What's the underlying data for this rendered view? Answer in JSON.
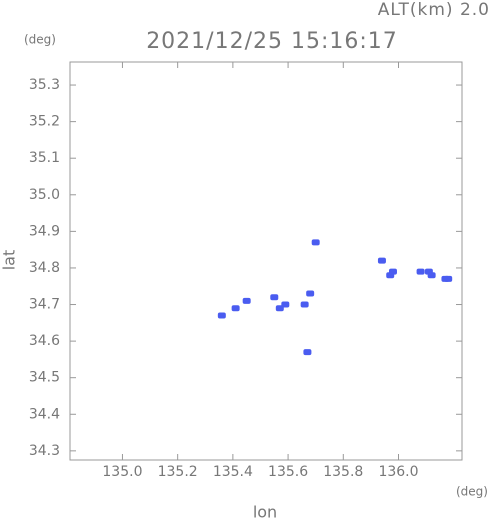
{
  "chart_data": {
    "type": "scatter",
    "title": "2021/12/25 15:16:17",
    "subtitle": "ALT(km) 2.0",
    "x_label": "lon",
    "y_label": "lat",
    "x_unit": "(deg)",
    "y_unit": "(deg)",
    "x": [
      135.7,
      135.94,
      135.98,
      135.97,
      136.08,
      136.11,
      136.12,
      136.17,
      136.18,
      135.68,
      135.55,
      135.59,
      135.57,
      135.66,
      135.41,
      135.45,
      135.36,
      135.67
    ],
    "values": [
      34.87,
      34.82,
      34.79,
      34.78,
      34.79,
      34.79,
      34.78,
      34.77,
      34.77,
      34.73,
      34.72,
      34.7,
      34.69,
      34.7,
      34.69,
      34.71,
      34.67,
      34.57
    ],
    "color": "#4a5cf0",
    "xlim": [
      134.81,
      136.23
    ],
    "ylim": [
      34.275,
      35.363
    ],
    "xticks": [
      {
        "value": 135.0,
        "label": "135.0"
      },
      135.2,
      135.4,
      135.6,
      135.8,
      {
        "value": 136.0,
        "label": "136.0"
      }
    ],
    "yticks": [
      34.3,
      34.4,
      34.5,
      34.6,
      34.7,
      34.8,
      34.9,
      {
        "value": 35.0,
        "label": "35.0"
      },
      35.1,
      35.2,
      35.3
    ]
  }
}
